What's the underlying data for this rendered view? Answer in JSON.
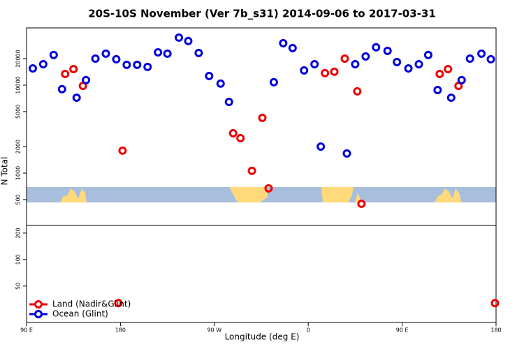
{
  "chart_data": [
    {
      "type": "scatter",
      "title": "20S-10S November (Ver 7b_s31)   2014-09-06 to 2017-03-31",
      "ylabel": "N Total",
      "xlim": [
        90,
        540
      ],
      "ylim": [
        254,
        44700
      ],
      "ylog": true,
      "yticks": [
        500,
        1000,
        2000,
        5000,
        10000,
        20000
      ],
      "series": [
        {
          "color": "#ee0000",
          "x": [
            127,
            135,
            144,
            182,
            288,
            295,
            306,
            316,
            322,
            376,
            385,
            395,
            407,
            411,
            486,
            494,
            504
          ],
          "values": [
            13400,
            15200,
            9800,
            1800,
            2840,
            2500,
            1060,
            4240,
            670,
            13700,
            14200,
            20000,
            8500,
            448,
            13400,
            15200,
            9800
          ]
        },
        {
          "color": "#0000dd",
          "x": [
            96,
            106,
            116,
            124,
            138,
            147,
            156,
            166,
            176,
            186,
            196,
            206,
            216,
            225,
            236,
            245,
            255,
            265,
            276,
            284,
            327,
            336,
            345,
            356,
            366,
            372,
            397,
            405,
            415,
            425,
            436,
            445,
            456,
            466,
            475,
            484,
            497,
            507,
            515,
            526,
            535
          ],
          "values": [
            15500,
            17300,
            22000,
            9000,
            7200,
            11400,
            20000,
            22800,
            19700,
            17000,
            17000,
            16100,
            23600,
            22800,
            34700,
            31700,
            23200,
            12700,
            10400,
            6450,
            10800,
            30000,
            26400,
            14700,
            17300,
            2000,
            1670,
            17300,
            21200,
            26900,
            24500,
            18300,
            15500,
            17300,
            22000,
            8800,
            7200,
            11400,
            20000,
            22800,
            19700
          ]
        }
      ]
    },
    {
      "type": "scatter",
      "xlabel": "Longitude (deg E)",
      "xlim": [
        90,
        540
      ],
      "ylim": [
        19.3,
        244
      ],
      "ylog": true,
      "xticks": [
        {
          "value": 90,
          "label": "90 E"
        },
        180,
        {
          "value": 270,
          "label": "90 W"
        },
        {
          "value": 360,
          "label": "0"
        },
        {
          "value": 450,
          "label": "90 E"
        },
        {
          "value": 540,
          "label": "180"
        }
      ],
      "yticks": [
        50,
        100,
        200
      ],
      "legend": "bottom-left",
      "series": [
        {
          "name": "Land (Nadir&Glint)",
          "color": "#ee0000",
          "x": [
            178,
            539
          ],
          "values": [
            32,
            32
          ]
        },
        {
          "name": "Ocean (Glint)",
          "color": "#0000dd",
          "x": [],
          "values": []
        }
      ]
    }
  ]
}
